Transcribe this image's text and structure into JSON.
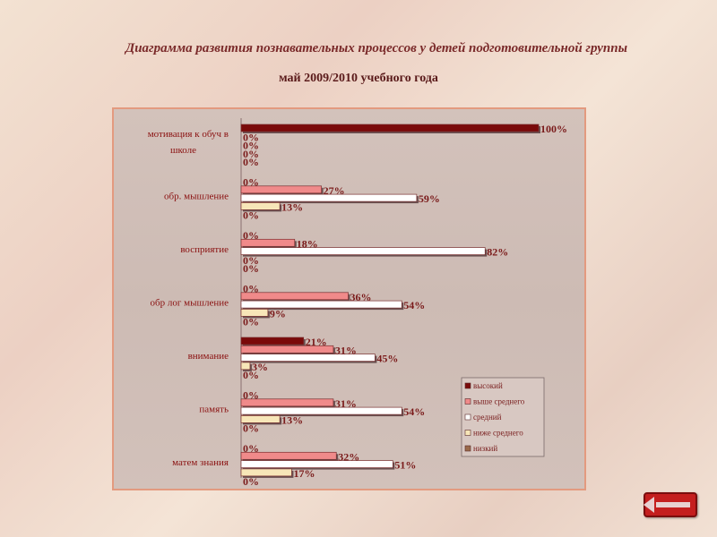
{
  "title": "Диаграмма  развития  познавательных процессов  у  детей  подготовительной группы",
  "subtitle": "май 2009/2010 учебного года",
  "colors": {
    "high": "#7a0a0a",
    "above_avg": "#f08a8a",
    "avg": "#ffffff",
    "below_avg": "#f7e6b8",
    "low": "#9a6a4a",
    "label_text": "#8a1010",
    "value_text": "#7a1a1a"
  },
  "nav": {
    "back_icon": "left-arrow-icon"
  },
  "chart_data": {
    "type": "bar",
    "orientation": "horizontal",
    "categories": [
      "мотивация к обуч в школе",
      "обр. мышление",
      "восприятие",
      "обр лог мышление",
      "внимание",
      "память",
      "матем знания"
    ],
    "series": [
      {
        "name": "высокий",
        "values": [
          100,
          0,
          0,
          0,
          21,
          0,
          0
        ]
      },
      {
        "name": "выше среднего",
        "values": [
          0,
          27,
          18,
          36,
          31,
          31,
          32
        ]
      },
      {
        "name": "средний",
        "values": [
          0,
          59,
          82,
          54,
          45,
          54,
          51
        ]
      },
      {
        "name": "ниже среднего",
        "values": [
          0,
          13,
          0,
          9,
          3,
          13,
          17
        ]
      },
      {
        "name": "низкий",
        "values": [
          0,
          0,
          0,
          0,
          0,
          0,
          0
        ]
      }
    ],
    "value_suffix": "%",
    "xlim": [
      0,
      100
    ],
    "legend": "bottom-right",
    "grid": false
  }
}
